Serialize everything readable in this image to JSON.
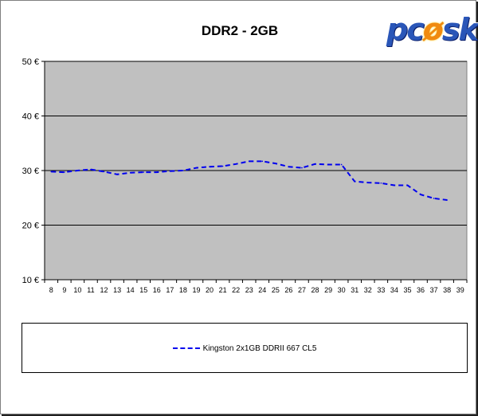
{
  "brand": {
    "logo_text_a": "pc",
    "logo_text_flame": "ø",
    "logo_text_b": "sk"
  },
  "chart_data": {
    "type": "line",
    "title": "DDR2 - 2GB",
    "xlabel": "",
    "ylabel": "",
    "x": [
      8,
      9,
      10,
      11,
      12,
      13,
      14,
      15,
      16,
      17,
      18,
      19,
      20,
      21,
      22,
      23,
      24,
      25,
      26,
      27,
      28,
      29,
      30,
      31,
      32,
      33,
      34,
      35,
      36,
      37,
      38,
      39
    ],
    "xlim": [
      8,
      39
    ],
    "ylim": [
      10,
      50
    ],
    "yticks": [
      10,
      20,
      30,
      40,
      50
    ],
    "ytick_labels": [
      "10 €",
      "20 €",
      "30 €",
      "40 €",
      "50 €"
    ],
    "grid": true,
    "plot_background": "#c0c0c0",
    "legend_position": "bottom",
    "series": [
      {
        "name": "Kingston 2x1GB DDRII 667 CL5",
        "color": "#0000ee",
        "style": "dashed",
        "x": [
          8,
          9,
          10,
          11,
          12,
          13,
          14,
          15,
          16,
          17,
          18,
          19,
          20,
          21,
          22,
          23,
          24,
          25,
          26,
          27,
          28,
          29,
          30,
          31,
          32,
          33,
          34,
          35,
          36,
          37,
          38
        ],
        "values": [
          29.8,
          29.7,
          30.0,
          30.2,
          29.8,
          29.3,
          29.6,
          29.7,
          29.7,
          29.9,
          30.0,
          30.5,
          30.7,
          30.8,
          31.2,
          31.7,
          31.7,
          31.3,
          30.7,
          30.5,
          31.2,
          31.1,
          31.1,
          28.0,
          27.8,
          27.7,
          27.3,
          27.3,
          25.6,
          24.9,
          24.6
        ]
      }
    ]
  }
}
